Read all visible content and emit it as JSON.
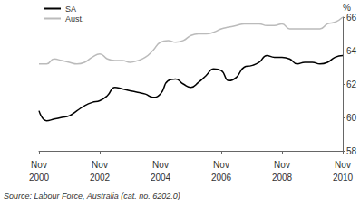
{
  "chart_data": {
    "type": "line",
    "y_label": "%",
    "source": "Source: Labour Force, Australia (cat. no. 6202.0)",
    "categories": [
      "Nov 2000",
      null,
      null,
      null,
      null,
      null,
      null,
      null,
      "Nov 2002",
      null,
      null,
      null,
      null,
      null,
      null,
      null,
      "Nov 2004",
      null,
      null,
      null,
      null,
      null,
      null,
      null,
      "Nov 2006",
      null,
      null,
      null,
      null,
      null,
      null,
      null,
      "Nov 2008",
      null,
      null,
      null,
      null,
      null,
      null,
      null,
      "Nov 2010"
    ],
    "series": [
      {
        "name": "SA",
        "color": "#000000",
        "values": [
          60.4,
          59.8,
          59.9,
          60.0,
          60.1,
          60.4,
          60.7,
          60.9,
          61.0,
          61.3,
          61.8,
          61.7,
          61.6,
          61.5,
          61.4,
          61.2,
          61.4,
          62.2,
          62.3,
          62.0,
          61.8,
          62.1,
          62.5,
          62.9,
          62.8,
          62.2,
          62.4,
          63.0,
          63.1,
          63.3,
          63.7,
          63.6,
          63.6,
          63.5,
          63.2,
          63.3,
          63.3,
          63.2,
          63.3,
          63.6,
          63.7
        ]
      },
      {
        "name": "Aust.",
        "color": "#bbbbbb",
        "values": [
          63.2,
          63.2,
          63.5,
          63.4,
          63.3,
          63.2,
          63.3,
          63.6,
          63.8,
          63.5,
          63.4,
          63.4,
          63.3,
          63.4,
          63.6,
          64.0,
          64.5,
          64.6,
          64.5,
          64.6,
          64.9,
          65.0,
          65.0,
          65.1,
          65.3,
          65.4,
          65.5,
          65.6,
          65.6,
          65.6,
          65.5,
          65.5,
          65.6,
          65.3,
          65.3,
          65.3,
          65.3,
          65.3,
          65.6,
          65.7,
          66.0
        ]
      }
    ],
    "ylim": [
      58,
      66
    ],
    "yticks": [
      58,
      60,
      62,
      64,
      66
    ],
    "grid": false,
    "legend": "top-left"
  }
}
